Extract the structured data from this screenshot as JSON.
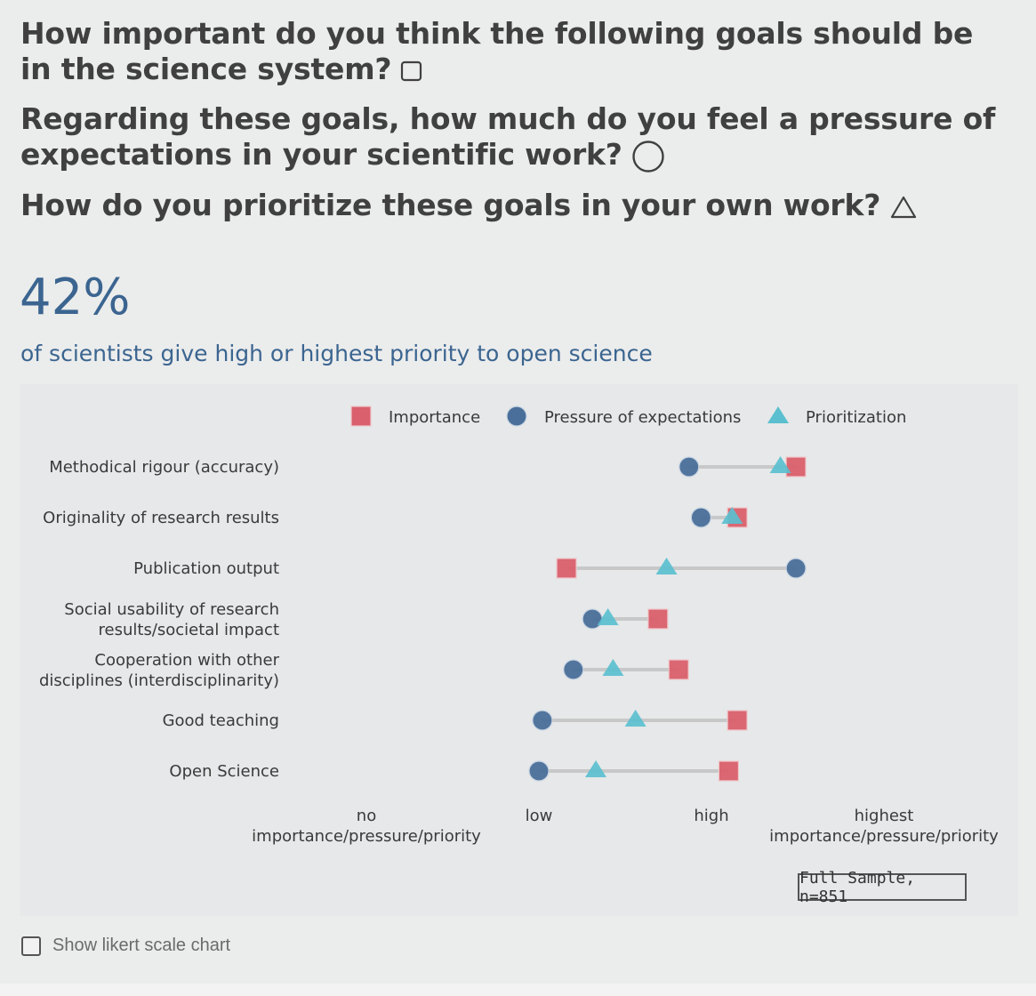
{
  "questions": [
    {
      "text": "How important do you think the following goals should be in the science system?",
      "shape": "square"
    },
    {
      "text": "Regarding these goals, how much do you feel a pressure of expectations in your scientific work?",
      "shape": "circle"
    },
    {
      "text": "How do you prioritize these goals in your own work?",
      "shape": "triangle"
    }
  ],
  "headline": {
    "value": "42%",
    "caption": "of scientists give high or highest priority to open science"
  },
  "colors": {
    "importance": "#d9606c",
    "pressure": "#4a6f9a",
    "prioritization": "#5bbfcf",
    "connector": "#c8c8c8",
    "accent_text": "#3b6590"
  },
  "chart_data": {
    "type": "scatter",
    "legend": {
      "placement": "top",
      "items": [
        {
          "key": "importance",
          "label": "Importance",
          "shape": "square"
        },
        {
          "key": "pressure",
          "label": "Pressure of expectations",
          "shape": "circle"
        },
        {
          "key": "prioritization",
          "label": "Prioritization",
          "shape": "triangle"
        }
      ]
    },
    "x_ticks": [
      {
        "value": 0,
        "lines": [
          "no",
          "importance/pressure/priority"
        ]
      },
      {
        "value": 1,
        "lines": [
          "low"
        ]
      },
      {
        "value": 2,
        "lines": [
          "high"
        ]
      },
      {
        "value": 3,
        "lines": [
          "highest",
          "importance/pressure/priority"
        ]
      }
    ],
    "xlim": [
      0,
      3
    ],
    "categories": [
      {
        "lines": [
          "Methodical rigour (accuracy)"
        ],
        "importance": 2.49,
        "pressure": 1.87,
        "prioritization": 2.4
      },
      {
        "lines": [
          "Originality of research results"
        ],
        "importance": 2.15,
        "pressure": 1.94,
        "prioritization": 2.12
      },
      {
        "lines": [
          "Publication output"
        ],
        "importance": 1.16,
        "pressure": 2.49,
        "prioritization": 1.74
      },
      {
        "lines": [
          "Social usability of research",
          "results/societal impact"
        ],
        "importance": 1.69,
        "pressure": 1.31,
        "prioritization": 1.4
      },
      {
        "lines": [
          "Cooperation with other",
          "disciplines (interdisciplinarity)"
        ],
        "importance": 1.81,
        "pressure": 1.2,
        "prioritization": 1.43
      },
      {
        "lines": [
          "Good teaching"
        ],
        "importance": 2.15,
        "pressure": 1.02,
        "prioritization": 1.56
      },
      {
        "lines": [
          "Open Science"
        ],
        "importance": 2.1,
        "pressure": 1.0,
        "prioritization": 1.33
      }
    ]
  },
  "sample_label": "Full Sample, n=851",
  "likert_toggle": {
    "label": "Show likert scale chart",
    "checked": false
  }
}
